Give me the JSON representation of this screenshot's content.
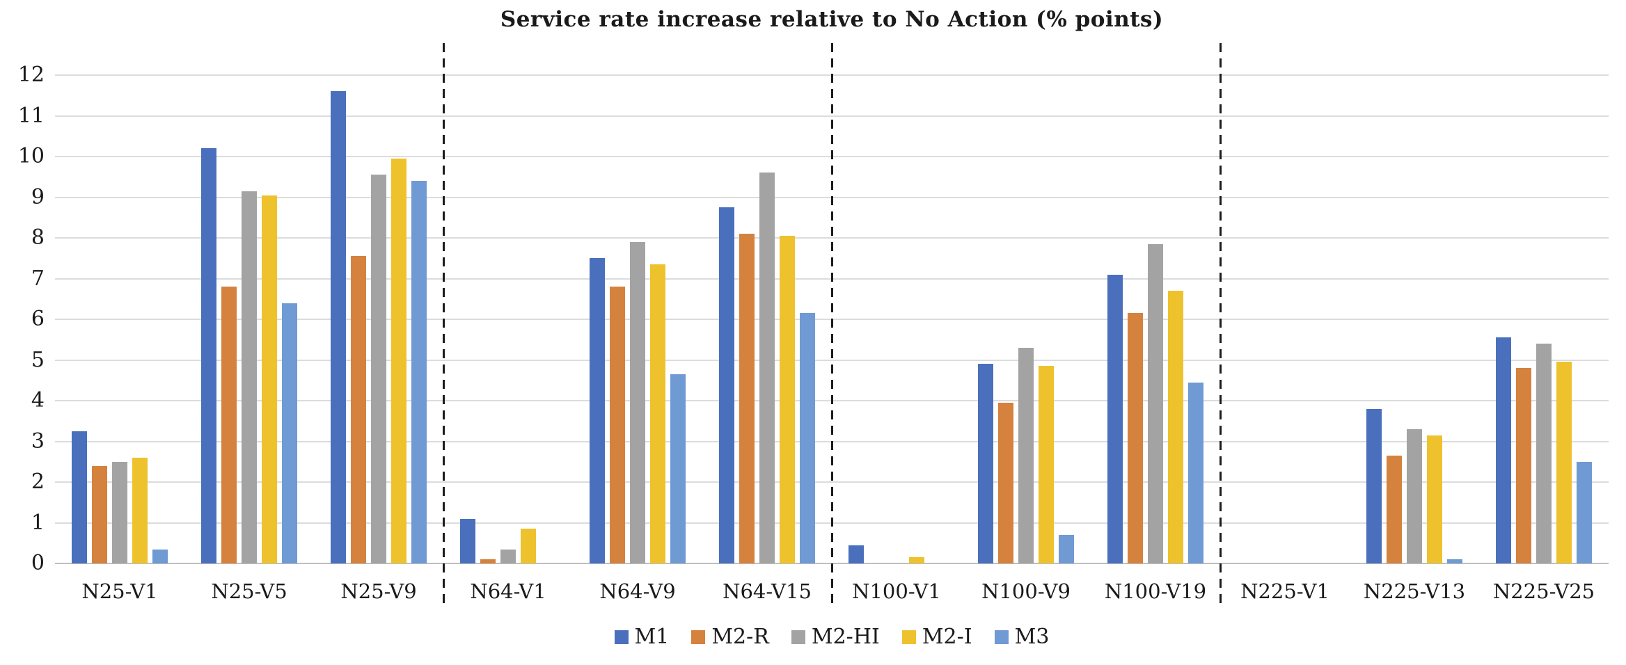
{
  "title": "Service rate increase relative to No Action (% points)",
  "chart_data": {
    "type": "bar",
    "title": "Service rate increase relative to No Action (% points)",
    "categories": [
      "N25-V1",
      "N25-V5",
      "N25-V9",
      "N64-V1",
      "N64-V9",
      "N64-V15",
      "N100-V1",
      "N100-V9",
      "N100-V19",
      "N225-V1",
      "N225-V13",
      "N225-V25"
    ],
    "series": [
      {
        "name": "M1",
        "color": "#4a6fbd",
        "values": [
          3.25,
          10.2,
          11.6,
          1.1,
          7.5,
          8.75,
          0.45,
          4.9,
          7.1,
          0,
          3.8,
          5.55
        ]
      },
      {
        "name": "M2-R",
        "color": "#d5823e",
        "values": [
          2.4,
          6.8,
          7.55,
          0.1,
          6.8,
          8.1,
          0,
          3.95,
          6.15,
          0,
          2.65,
          4.8
        ]
      },
      {
        "name": "M2-HI",
        "color": "#a3a3a3",
        "values": [
          2.5,
          9.15,
          9.55,
          0.35,
          7.9,
          9.6,
          0,
          5.3,
          7.85,
          0,
          3.3,
          5.4
        ]
      },
      {
        "name": "M2-I",
        "color": "#eec22d",
        "values": [
          2.6,
          9.05,
          9.95,
          0.85,
          7.35,
          8.05,
          0.15,
          4.85,
          6.7,
          0,
          3.15,
          4.95
        ]
      },
      {
        "name": "M3",
        "color": "#6f9ad3",
        "values": [
          0.35,
          6.4,
          9.4,
          0,
          4.65,
          6.15,
          0,
          0.7,
          4.45,
          0,
          0.1,
          2.5
        ]
      }
    ],
    "ylabel": "",
    "xlabel": "",
    "ylim": [
      0,
      12
    ],
    "y_ticks": [
      0,
      1,
      2,
      3,
      4,
      5,
      6,
      7,
      8,
      9,
      10,
      11,
      12
    ],
    "grid": "horizontal",
    "legend_position": "bottom",
    "group_separators_after": [
      "N25-V9",
      "N64-V15",
      "N100-V19"
    ]
  },
  "legend": {
    "items": [
      {
        "label": "M1",
        "color": "#4a6fbd"
      },
      {
        "label": "M2-R",
        "color": "#d5823e"
      },
      {
        "label": "M2-HI",
        "color": "#a3a3a3"
      },
      {
        "label": "M2-I",
        "color": "#eec22d"
      },
      {
        "label": "M3",
        "color": "#6f9ad3"
      }
    ]
  },
  "colors": {
    "gridline": "#dcdcdc",
    "axis_line": "#bfbfbf",
    "separator": "#1c1c1c",
    "text": "#1a1a1a",
    "background": "#ffffff"
  }
}
